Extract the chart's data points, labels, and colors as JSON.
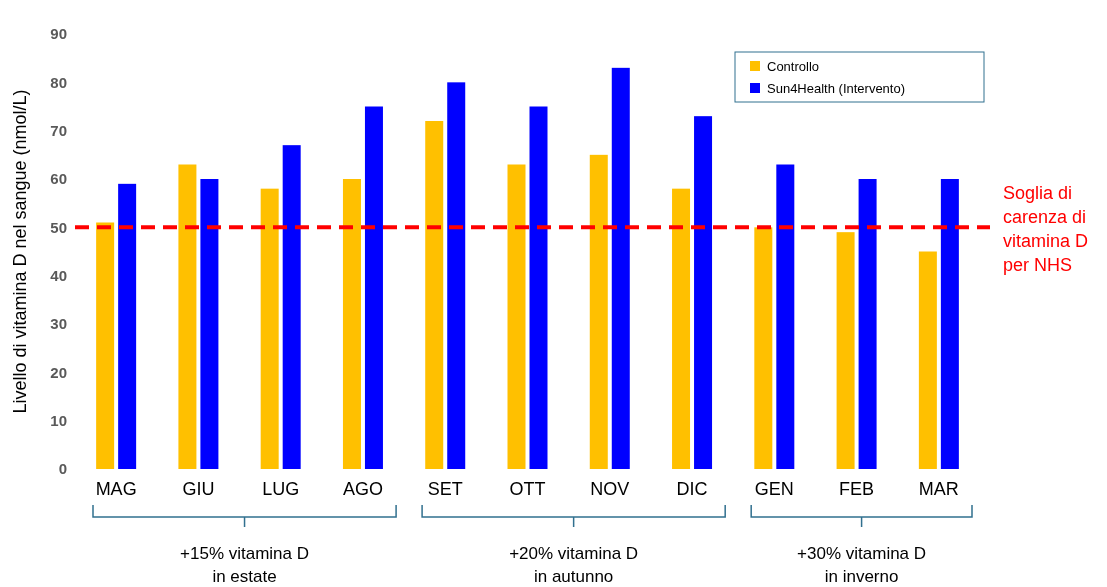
{
  "chart_data": {
    "type": "bar",
    "ylabel": "Livello di vitamina D nel sangue (nmol/L)",
    "categories": [
      "MAG",
      "GIU",
      "LUG",
      "AGO",
      "SET",
      "OTT",
      "NOV",
      "DIC",
      "GEN",
      "FEB",
      "MAR"
    ],
    "series": [
      {
        "name": "Controllo",
        "color": "#ffc000",
        "values": [
          51,
          63,
          58,
          60,
          72,
          63,
          65,
          58,
          50,
          49,
          45
        ]
      },
      {
        "name": "Sun4Health (Intervento)",
        "color": "#0000ff",
        "values": [
          59,
          60,
          67,
          75,
          80,
          75,
          83,
          73,
          63,
          60,
          60
        ]
      }
    ],
    "ylim": [
      0,
      90
    ],
    "yticks": [
      0,
      10,
      20,
      30,
      40,
      50,
      60,
      70,
      80,
      90
    ],
    "grid": false,
    "legend": "top right",
    "ref_lines": [
      {
        "axis": "y",
        "value": 50,
        "label": "Soglia di carenza di vitamina D per NHS",
        "color": "#ff0000",
        "line_style": "dashed"
      }
    ],
    "annotations": [
      "+15% vitamina D in estate",
      "+20% vitamina D in autunno",
      "+30% vitamina D in inverno"
    ]
  }
}
